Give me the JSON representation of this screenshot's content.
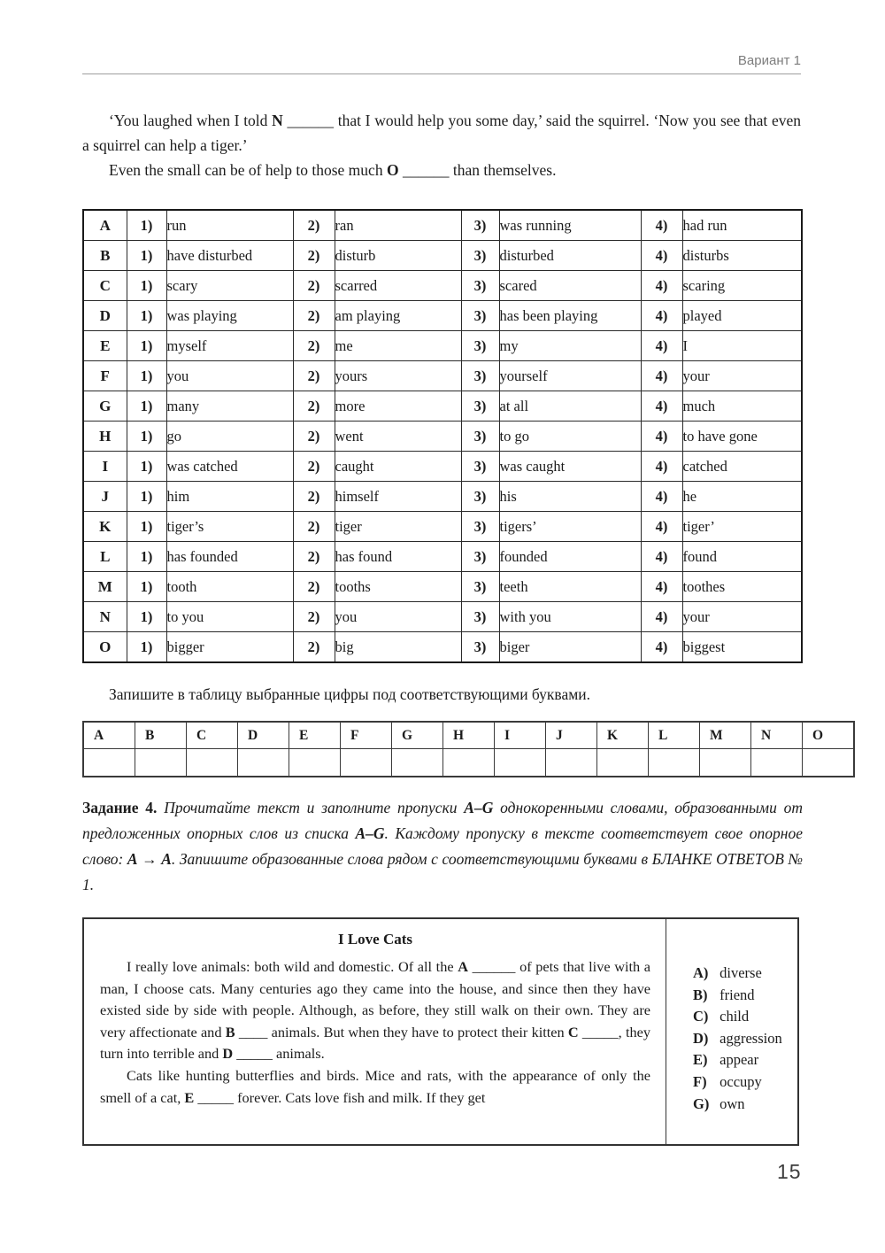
{
  "header": {
    "variant": "Вариант 1"
  },
  "intro": {
    "p1": [
      {
        "t": "‘You laughed when I told "
      },
      {
        "t": "N",
        "b": true
      },
      {
        "t": " ______ that I would help you some day,’ said the squirrel. ‘Now you see that even a squirrel can help a tiger.’"
      }
    ],
    "p2": [
      {
        "t": "Even the small can be of help to those much "
      },
      {
        "t": "O",
        "b": true
      },
      {
        "t": " ______ than themselves."
      }
    ]
  },
  "word_table": {
    "num_labels": [
      "1)",
      "2)",
      "3)",
      "4)"
    ],
    "rows": [
      {
        "letter": "A",
        "options": [
          "run",
          "ran",
          "was running",
          "had run"
        ]
      },
      {
        "letter": "B",
        "options": [
          "have disturbed",
          "disturb",
          "disturbed",
          "disturbs"
        ]
      },
      {
        "letter": "C",
        "options": [
          "scary",
          "scarred",
          "scared",
          "scaring"
        ]
      },
      {
        "letter": "D",
        "options": [
          "was playing",
          "am playing",
          "has been playing",
          "played"
        ]
      },
      {
        "letter": "E",
        "options": [
          "myself",
          "me",
          "my",
          "I"
        ]
      },
      {
        "letter": "F",
        "options": [
          "you",
          "yours",
          "yourself",
          "your"
        ]
      },
      {
        "letter": "G",
        "options": [
          "many",
          "more",
          "at all",
          "much"
        ]
      },
      {
        "letter": "H",
        "options": [
          "go",
          "went",
          "to go",
          "to have gone"
        ]
      },
      {
        "letter": "I",
        "options": [
          "was catched",
          "caught",
          "was caught",
          "catched"
        ]
      },
      {
        "letter": "J",
        "options": [
          "him",
          "himself",
          "his",
          "he"
        ]
      },
      {
        "letter": "K",
        "options": [
          "tiger’s",
          "tiger",
          "tigers’",
          "tiger’"
        ]
      },
      {
        "letter": "L",
        "options": [
          "has founded",
          "has found",
          "founded",
          "found"
        ]
      },
      {
        "letter": "M",
        "options": [
          "tooth",
          "tooths",
          "teeth",
          "toothes"
        ]
      },
      {
        "letter": "N",
        "options": [
          "to you",
          "you",
          "with you",
          "your"
        ]
      },
      {
        "letter": "O",
        "options": [
          "bigger",
          "big",
          "biger",
          "biggest"
        ]
      }
    ]
  },
  "answer_section": {
    "instruction": "Запишите в таблицу выбранные цифры под соответствующими буквами.",
    "letters": [
      "A",
      "B",
      "C",
      "D",
      "E",
      "F",
      "G",
      "H",
      "I",
      "J",
      "K",
      "L",
      "M",
      "N",
      "O"
    ]
  },
  "task4": {
    "segments": [
      {
        "t": "Задание 4. ",
        "b": true
      },
      {
        "t": "Прочитайте текст и заполните пропуски ",
        "i": true
      },
      {
        "t": "А–G",
        "b": true,
        "i": true
      },
      {
        "t": " однокоренными словами, образованными от предложенных опорных слов из списка ",
        "i": true
      },
      {
        "t": "А–G",
        "b": true,
        "i": true
      },
      {
        "t": ". Каждому пропуску в тексте соответствует свое опорное слово: ",
        "i": true
      },
      {
        "t": "А → А",
        "b": true,
        "i": true
      },
      {
        "t": ". Запишите образованные слова рядом с соответствующими буквами в БЛАНКЕ ОТВЕТОВ № 1.",
        "i": true
      }
    ]
  },
  "cats_box": {
    "title": "I Love Cats",
    "p1": [
      {
        "t": "I really love animals: both wild and domestic. Of all the "
      },
      {
        "t": "A",
        "b": true
      },
      {
        "t": " ______ of pets that live with a man, I choose cats. Many centuries ago they came into the house, and since then they have existed side by side with people. Although, as before, they still walk on their own. They are very affectionate and "
      },
      {
        "t": "B",
        "b": true
      },
      {
        "t": " ____ animals. But when they have to protect their kitten "
      },
      {
        "t": "C",
        "b": true
      },
      {
        "t": " _____, they turn into terrible and "
      },
      {
        "t": "D",
        "b": true
      },
      {
        "t": " _____ animals."
      }
    ],
    "p2": [
      {
        "t": "Cats like hunting butterflies and birds. Mice and rats, with the appearance of only the smell of a cat, "
      },
      {
        "t": "E",
        "b": true
      },
      {
        "t": " _____ forever. Cats love fish and milk. If they get"
      }
    ],
    "options": [
      {
        "label": "A)",
        "word": "diverse"
      },
      {
        "label": "B)",
        "word": "friend"
      },
      {
        "label": "C)",
        "word": "child"
      },
      {
        "label": "D)",
        "word": "aggression"
      },
      {
        "label": "E)",
        "word": "appear"
      },
      {
        "label": "F)",
        "word": "occupy"
      },
      {
        "label": "G)",
        "word": "own"
      }
    ]
  },
  "footer": {
    "page_number": "15"
  }
}
